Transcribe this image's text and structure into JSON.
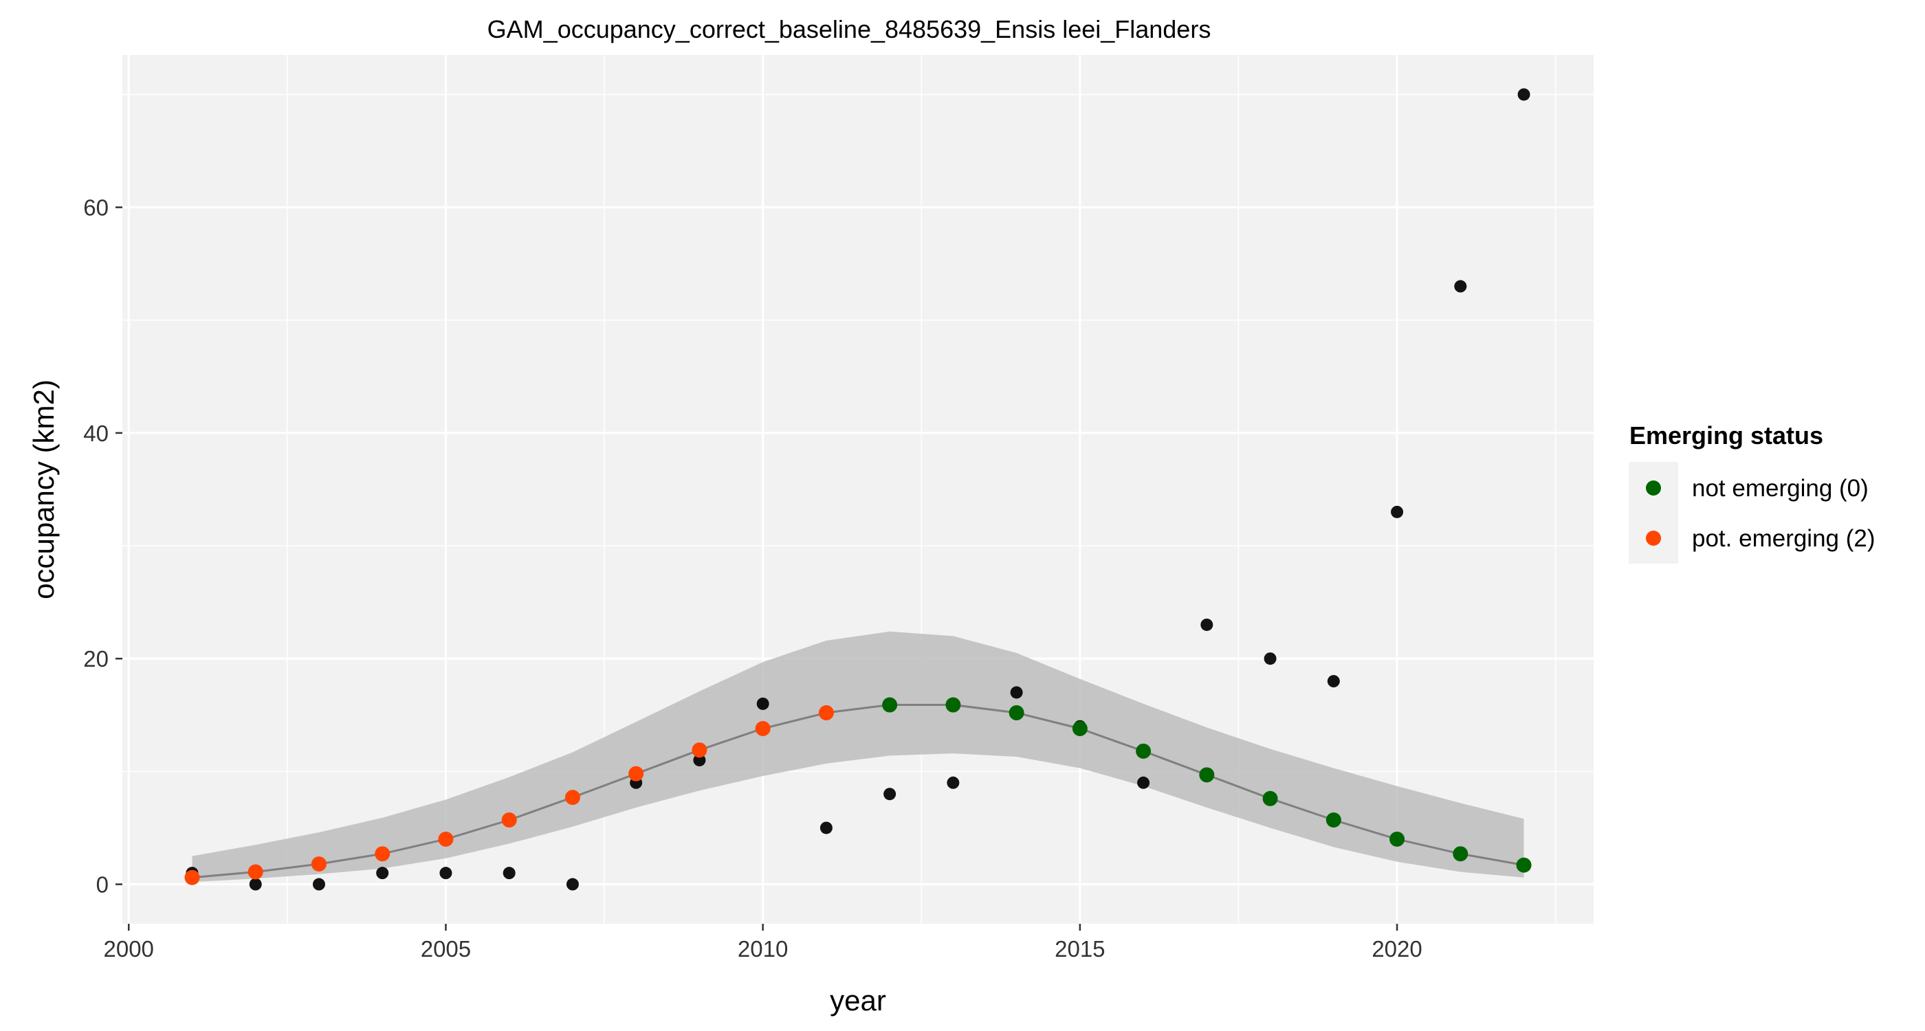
{
  "chart_data": {
    "type": "scatter",
    "title": "GAM_occupancy_correct_baseline_8485639_Ensis leei_Flanders",
    "xlabel": "year",
    "ylabel": "occupancy (km2)",
    "xlim": [
      1999.9,
      2023.1
    ],
    "ylim": [
      -3.5,
      73.5
    ],
    "x_ticks": [
      2000,
      2005,
      2010,
      2015,
      2020
    ],
    "y_ticks": [
      0,
      20,
      40,
      60
    ],
    "grid": true,
    "legend_position": "right",
    "legend": {
      "title": "Emerging status",
      "entries": [
        {
          "label": "not emerging (0)",
          "color": "#006400"
        },
        {
          "label": "pot. emerging (2)",
          "color": "#ff4500"
        }
      ]
    },
    "colors": {
      "panel": "#f2f2f2",
      "grid": "#ffffff",
      "ribbon": "#bdbdbd",
      "fit_line": "#7f7f7f",
      "observed": "#000000",
      "not_emerging": "#006400",
      "pot_emerging": "#ff4500"
    },
    "observed": {
      "x": [
        2001,
        2002,
        2003,
        2004,
        2005,
        2006,
        2007,
        2008,
        2009,
        2010,
        2011,
        2012,
        2013,
        2014,
        2015,
        2016,
        2017,
        2018,
        2019,
        2020,
        2021,
        2022
      ],
      "y": [
        1,
        0,
        0,
        1,
        1,
        1,
        0,
        9,
        11,
        16,
        5,
        8,
        9,
        17,
        14,
        9,
        23,
        20,
        18,
        33,
        53,
        70
      ]
    },
    "fit": {
      "x": [
        2001,
        2002,
        2003,
        2004,
        2005,
        2006,
        2007,
        2008,
        2009,
        2010,
        2011,
        2012,
        2013,
        2014,
        2015,
        2016,
        2017,
        2018,
        2019,
        2020,
        2021,
        2022
      ],
      "y": [
        0.6,
        1.1,
        1.8,
        2.7,
        4.0,
        5.7,
        7.7,
        9.8,
        11.9,
        13.8,
        15.2,
        15.9,
        15.9,
        15.2,
        13.8,
        11.8,
        9.7,
        7.6,
        5.7,
        4.0,
        2.7,
        1.7
      ],
      "lower": [
        0.2,
        0.5,
        0.9,
        1.4,
        2.3,
        3.6,
        5.1,
        6.8,
        8.3,
        9.6,
        10.7,
        11.4,
        11.6,
        11.3,
        10.3,
        8.7,
        6.8,
        5.0,
        3.3,
        2.0,
        1.1,
        0.6
      ],
      "upper": [
        2.5,
        3.5,
        4.6,
        5.9,
        7.5,
        9.5,
        11.7,
        14.4,
        17.1,
        19.7,
        21.6,
        22.4,
        22.0,
        20.5,
        18.2,
        16.0,
        13.9,
        12.0,
        10.3,
        8.7,
        7.2,
        5.8
      ],
      "status": [
        "pot. emerging (2)",
        "pot. emerging (2)",
        "pot. emerging (2)",
        "pot. emerging (2)",
        "pot. emerging (2)",
        "pot. emerging (2)",
        "pot. emerging (2)",
        "pot. emerging (2)",
        "pot. emerging (2)",
        "pot. emerging (2)",
        "pot. emerging (2)",
        "not emerging (0)",
        "not emerging (0)",
        "not emerging (0)",
        "not emerging (0)",
        "not emerging (0)",
        "not emerging (0)",
        "not emerging (0)",
        "not emerging (0)",
        "not emerging (0)",
        "not emerging (0)",
        "not emerging (0)"
      ]
    }
  }
}
